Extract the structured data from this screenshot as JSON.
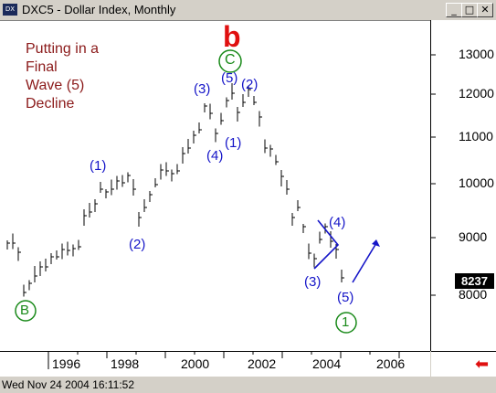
{
  "window": {
    "title": "DXC5 - Dollar Index, Monthly",
    "icon_label": "DX"
  },
  "note": {
    "lines": [
      "Putting in a",
      "Final",
      "Wave (5)",
      "Decline"
    ]
  },
  "axis": {
    "y_ticks": [
      "13000",
      "12000",
      "11000",
      "10000",
      "9000",
      "8000"
    ],
    "x_ticks": [
      "1996",
      "1998",
      "2000",
      "2002",
      "2004",
      "2006"
    ],
    "last_price": "8237"
  },
  "wave_labels": {
    "w1": "(1)",
    "w2": "(2)",
    "w3": "(3)",
    "w4": "(4)",
    "w5": "(5)",
    "w1b": "(1)",
    "w2b": "(2)",
    "w3b": "(3)",
    "w4b": "(4)",
    "w5b": "(5)",
    "b": "b",
    "C": "C",
    "B": "B",
    "one": "1"
  },
  "status": {
    "datetime": "Wed Nov 24 2004 16:11:52"
  },
  "colors": {
    "wave_blue": "#1515c8",
    "red": "#e01010",
    "green": "#1a8a1a",
    "note": "#8b1a1a"
  }
}
